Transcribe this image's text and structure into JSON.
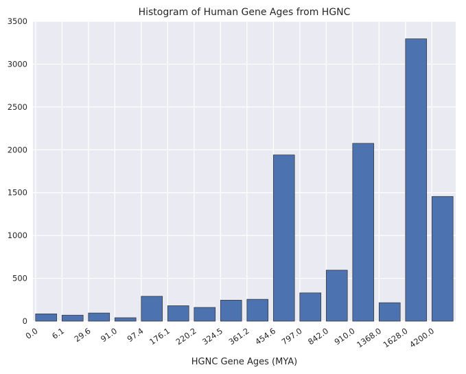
{
  "chart_data": {
    "type": "bar",
    "title": "Histogram of Human Gene Ages from HGNC",
    "xlabel": "HGNC Gene Ages (MYA)",
    "ylabel": "",
    "categories": [
      "0.0",
      "6.1",
      "29.6",
      "91.0",
      "97.4",
      "176.1",
      "220.2",
      "324.5",
      "361.2",
      "454.6",
      "797.0",
      "842.0",
      "910.0",
      "1368.0",
      "1628.0",
      "4200.0"
    ],
    "values": [
      85,
      70,
      95,
      40,
      290,
      180,
      160,
      245,
      255,
      1940,
      330,
      595,
      2075,
      215,
      3295,
      1455
    ],
    "ylim": [
      0,
      3500
    ],
    "yticks": [
      "0",
      "500",
      "1000",
      "1500",
      "2000",
      "2500",
      "3000",
      "3500"
    ],
    "grid": true,
    "colors": {
      "bar": "#4c72b0",
      "background": "#eaeaf2",
      "grid": "#ffffff"
    }
  }
}
